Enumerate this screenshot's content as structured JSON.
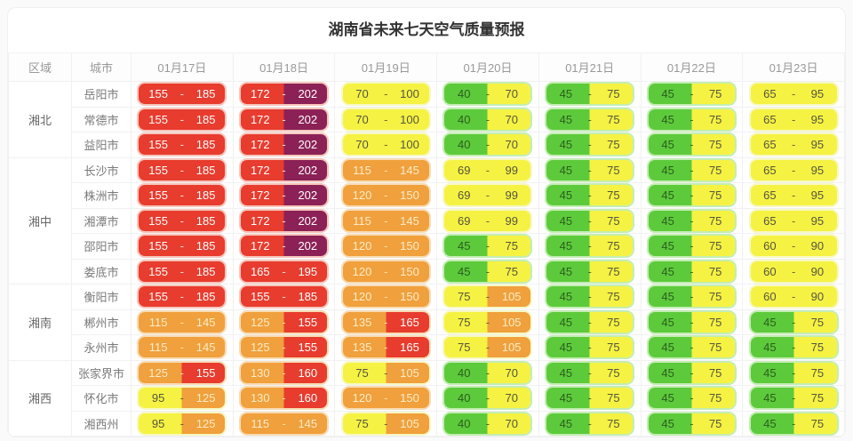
{
  "title": "湖南省未来七天空气质量预报",
  "table": {
    "region_header": "区域",
    "city_header": "城市",
    "date_headers": [
      "01月17日",
      "01月18日",
      "01月19日",
      "01月20日",
      "01月21日",
      "01月22日",
      "01月23日"
    ]
  },
  "aqi_levels": [
    {
      "name": "good",
      "max": 50,
      "bg": "#5dca3b",
      "text": "#2b5e20",
      "edge": "#c3eeb2"
    },
    {
      "name": "moderate",
      "max": 100,
      "bg": "#f5f243",
      "text": "#55553f",
      "edge": "#f7f8c2"
    },
    {
      "name": "lightly-polluted",
      "max": 150,
      "bg": "#f0a03c",
      "text": "#fbecc8",
      "edge": "#f8dcb4"
    },
    {
      "name": "moderately-polluted",
      "max": 200,
      "bg": "#e73c2e",
      "text": "#ffffff",
      "edge": "#f7c5bb"
    },
    {
      "name": "heavily-polluted",
      "max": 300,
      "bg": "#8b2156",
      "text": "#ffffff",
      "edge": "#dcadc8"
    }
  ],
  "chart_data": {
    "type": "table",
    "title": "湖南省未来七天空气质量预报",
    "columns": [
      "区域",
      "城市",
      "01月17日",
      "01月18日",
      "01月19日",
      "01月20日",
      "01月21日",
      "01月22日",
      "01月23日"
    ],
    "value_format": "AQI范围 低值 - 高值",
    "regions": [
      {
        "name": "湘北",
        "cities": [
          {
            "name": "岳阳市",
            "ranges": [
              [
                155,
                185
              ],
              [
                172,
                202
              ],
              [
                70,
                100
              ],
              [
                40,
                70
              ],
              [
                45,
                75
              ],
              [
                45,
                75
              ],
              [
                65,
                95
              ]
            ]
          },
          {
            "name": "常德市",
            "ranges": [
              [
                155,
                185
              ],
              [
                172,
                202
              ],
              [
                70,
                100
              ],
              [
                40,
                70
              ],
              [
                45,
                75
              ],
              [
                45,
                75
              ],
              [
                65,
                95
              ]
            ]
          },
          {
            "name": "益阳市",
            "ranges": [
              [
                155,
                185
              ],
              [
                172,
                202
              ],
              [
                70,
                100
              ],
              [
                40,
                70
              ],
              [
                45,
                75
              ],
              [
                45,
                75
              ],
              [
                65,
                95
              ]
            ]
          }
        ]
      },
      {
        "name": "湘中",
        "cities": [
          {
            "name": "长沙市",
            "ranges": [
              [
                155,
                185
              ],
              [
                172,
                202
              ],
              [
                115,
                145
              ],
              [
                69,
                99
              ],
              [
                45,
                75
              ],
              [
                45,
                75
              ],
              [
                65,
                95
              ]
            ]
          },
          {
            "name": "株洲市",
            "ranges": [
              [
                155,
                185
              ],
              [
                172,
                202
              ],
              [
                120,
                150
              ],
              [
                69,
                99
              ],
              [
                45,
                75
              ],
              [
                45,
                75
              ],
              [
                65,
                95
              ]
            ]
          },
          {
            "name": "湘潭市",
            "ranges": [
              [
                155,
                185
              ],
              [
                172,
                202
              ],
              [
                115,
                145
              ],
              [
                69,
                99
              ],
              [
                45,
                75
              ],
              [
                45,
                75
              ],
              [
                65,
                95
              ]
            ]
          },
          {
            "name": "邵阳市",
            "ranges": [
              [
                155,
                185
              ],
              [
                172,
                202
              ],
              [
                120,
                150
              ],
              [
                45,
                75
              ],
              [
                45,
                75
              ],
              [
                45,
                75
              ],
              [
                60,
                90
              ]
            ]
          },
          {
            "name": "娄底市",
            "ranges": [
              [
                155,
                185
              ],
              [
                165,
                195
              ],
              [
                120,
                150
              ],
              [
                45,
                75
              ],
              [
                45,
                75
              ],
              [
                45,
                75
              ],
              [
                60,
                90
              ]
            ]
          }
        ]
      },
      {
        "name": "湘南",
        "cities": [
          {
            "name": "衡阳市",
            "ranges": [
              [
                155,
                185
              ],
              [
                155,
                185
              ],
              [
                120,
                150
              ],
              [
                75,
                105
              ],
              [
                45,
                75
              ],
              [
                45,
                75
              ],
              [
                60,
                90
              ]
            ]
          },
          {
            "name": "郴州市",
            "ranges": [
              [
                115,
                145
              ],
              [
                125,
                155
              ],
              [
                135,
                165
              ],
              [
                75,
                105
              ],
              [
                45,
                75
              ],
              [
                45,
                75
              ],
              [
                45,
                75
              ]
            ]
          },
          {
            "name": "永州市",
            "ranges": [
              [
                115,
                145
              ],
              [
                125,
                155
              ],
              [
                135,
                165
              ],
              [
                75,
                105
              ],
              [
                45,
                75
              ],
              [
                45,
                75
              ],
              [
                45,
                75
              ]
            ]
          }
        ]
      },
      {
        "name": "湘西",
        "cities": [
          {
            "name": "张家界市",
            "ranges": [
              [
                125,
                155
              ],
              [
                130,
                160
              ],
              [
                75,
                105
              ],
              [
                40,
                70
              ],
              [
                45,
                75
              ],
              [
                45,
                75
              ],
              [
                45,
                75
              ]
            ]
          },
          {
            "name": "怀化市",
            "ranges": [
              [
                95,
                125
              ],
              [
                130,
                160
              ],
              [
                120,
                150
              ],
              [
                40,
                70
              ],
              [
                45,
                75
              ],
              [
                45,
                75
              ],
              [
                45,
                75
              ]
            ]
          },
          {
            "name": "湘西州",
            "ranges": [
              [
                95,
                125
              ],
              [
                115,
                145
              ],
              [
                75,
                105
              ],
              [
                40,
                70
              ],
              [
                45,
                75
              ],
              [
                45,
                75
              ],
              [
                45,
                75
              ]
            ]
          }
        ]
      }
    ]
  }
}
